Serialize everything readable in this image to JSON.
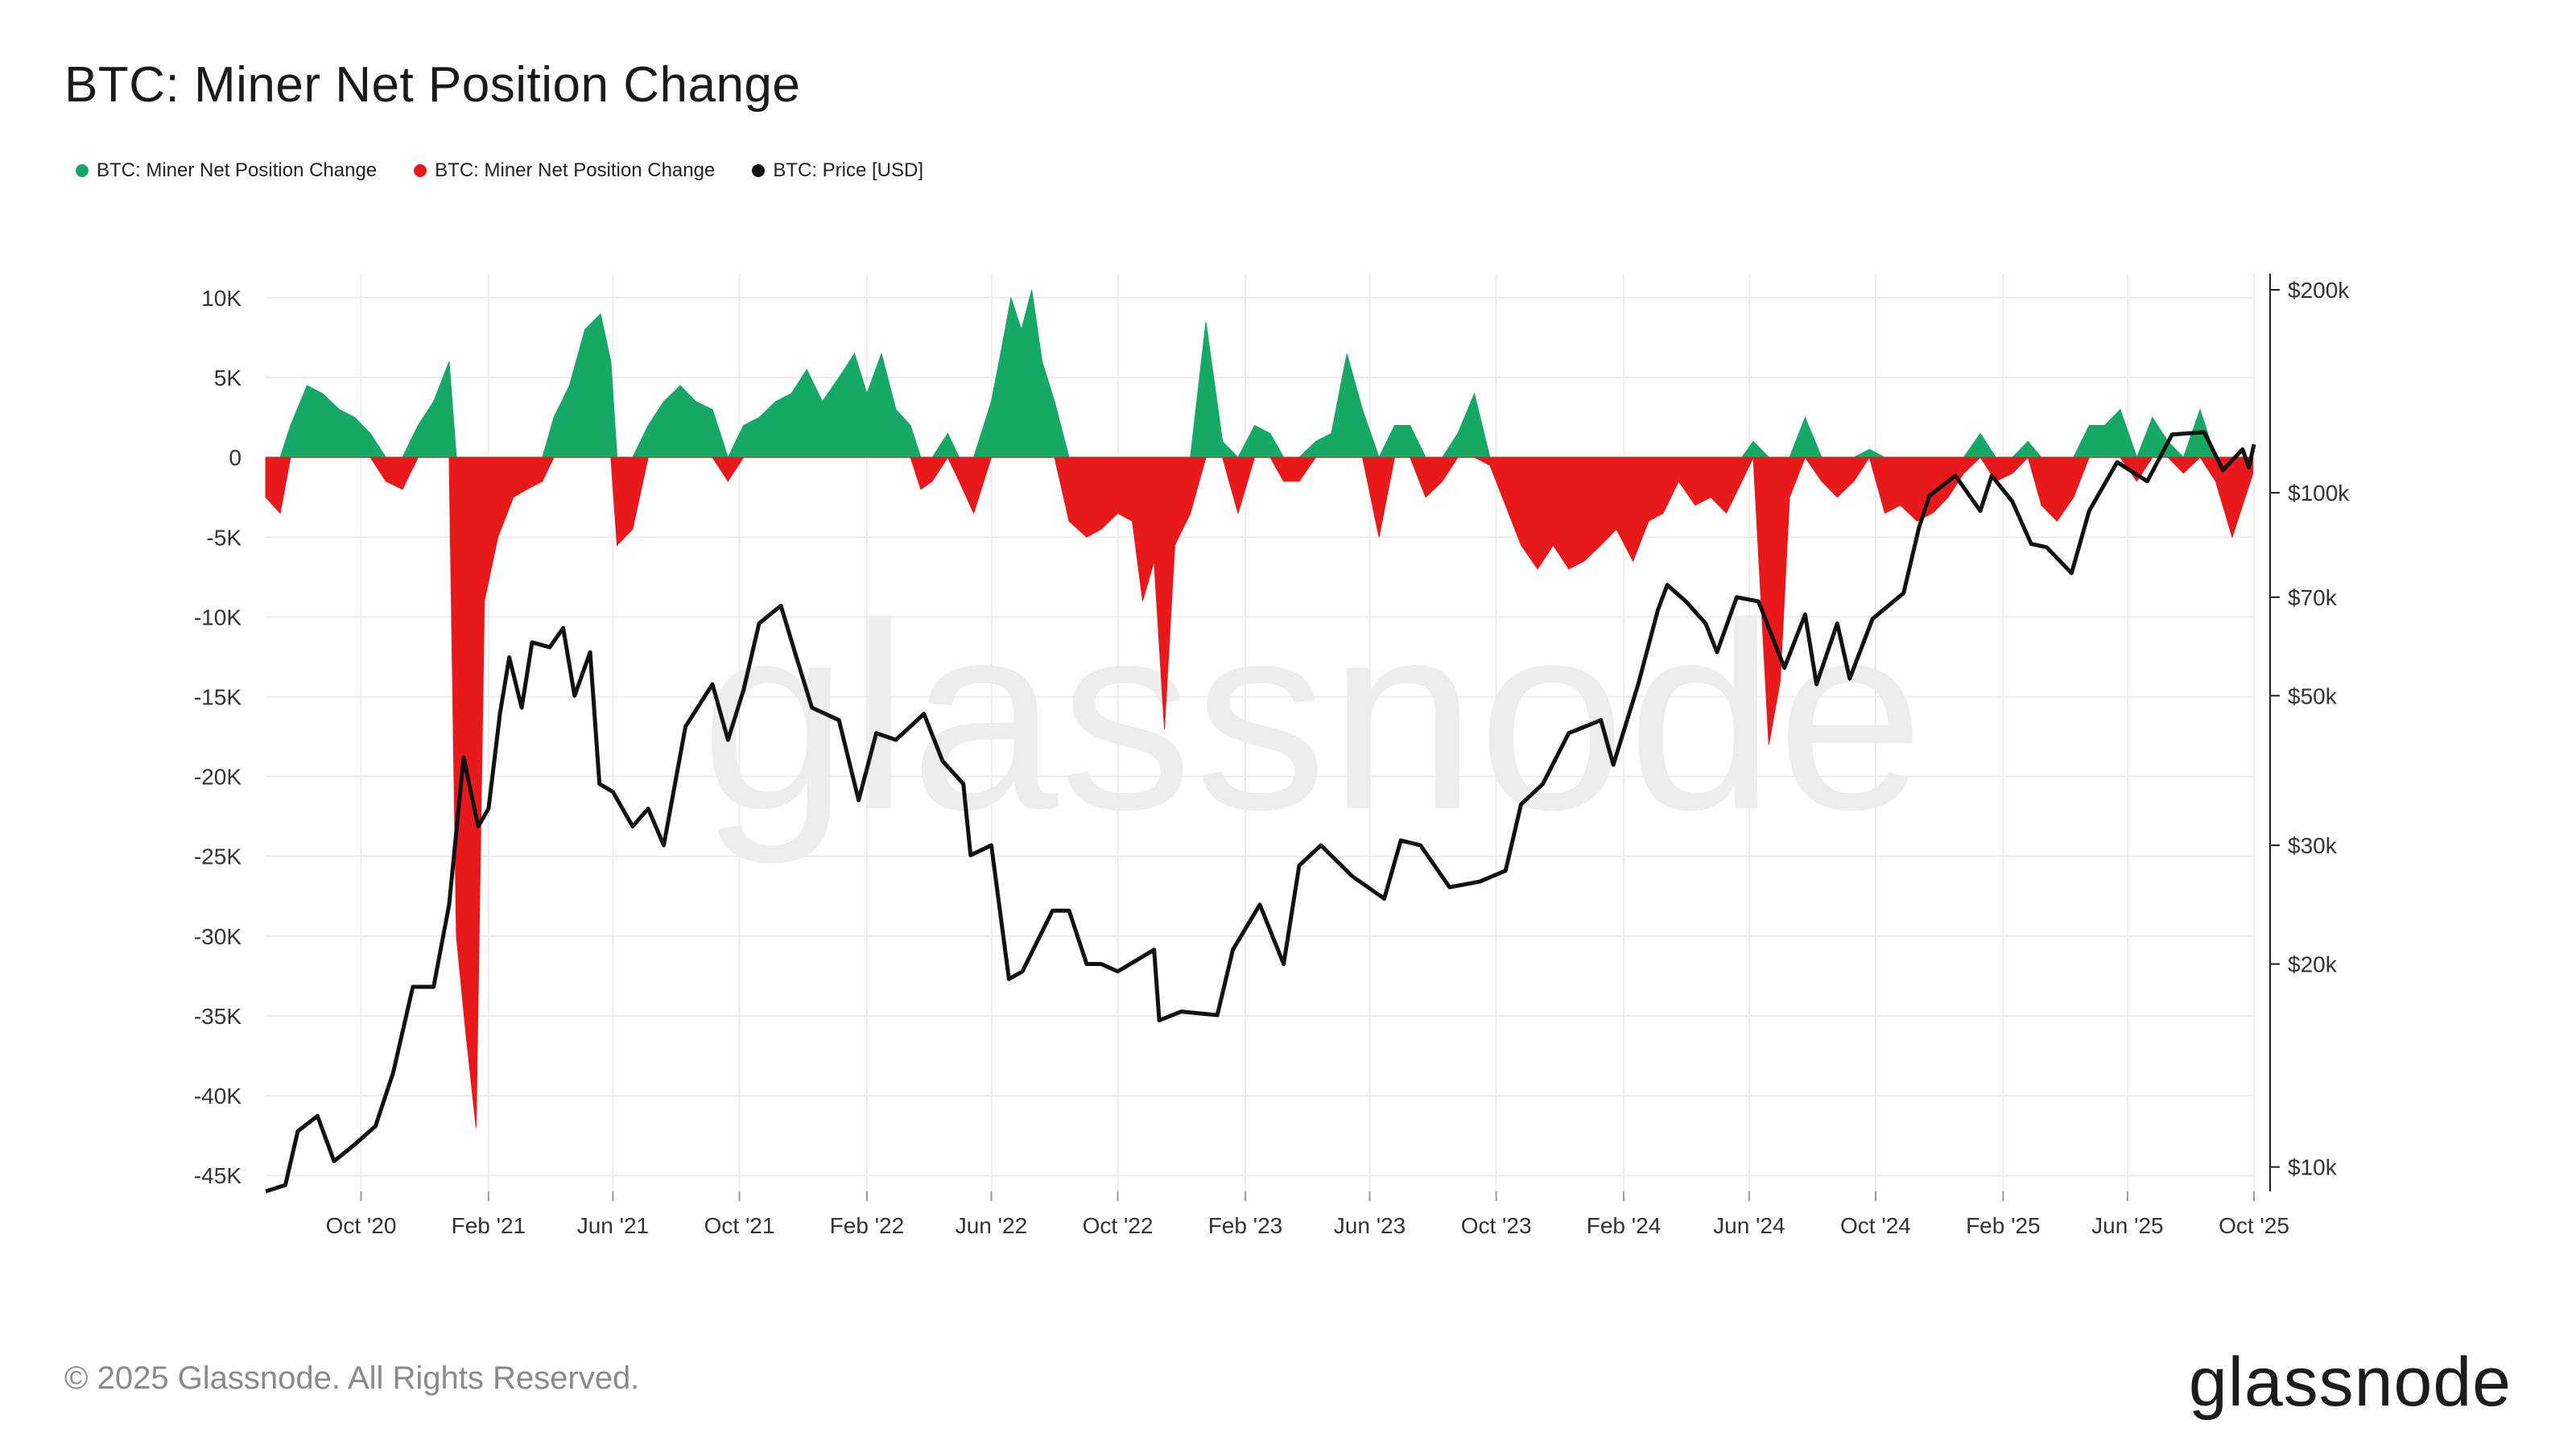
{
  "header": {
    "title": "BTC: Miner Net Position Change"
  },
  "legend": [
    {
      "label": "BTC: Miner Net Position Change",
      "color": "#16a865"
    },
    {
      "label": "BTC: Miner Net Position Change",
      "color": "#e8191b"
    },
    {
      "label": "BTC: Price [USD]",
      "color": "#111111"
    }
  ],
  "watermark": "glassnode",
  "footer": {
    "copyright": "© 2025 Glassnode. All Rights Reserved.",
    "brand": "glassnode"
  },
  "colors": {
    "positive": "#16a865",
    "negative": "#e8191b",
    "price": "#111111",
    "grid": "#ececec"
  },
  "chart_data": {
    "type": "bar+line",
    "x_ticks": [
      "Oct '20",
      "Feb '21",
      "Jun '21",
      "Oct '21",
      "Feb '22",
      "Jun '22",
      "Oct '22",
      "Feb '23",
      "Jun '23",
      "Oct '23",
      "Feb '24",
      "Jun '24",
      "Oct '24",
      "Feb '25",
      "Jun '25",
      "Oct '25"
    ],
    "x_tick_dates": [
      "2020-10-01",
      "2021-02-01",
      "2021-06-01",
      "2021-10-01",
      "2022-02-01",
      "2022-06-01",
      "2022-10-01",
      "2023-02-01",
      "2023-06-01",
      "2023-10-01",
      "2024-02-01",
      "2024-06-01",
      "2024-10-01",
      "2025-02-01",
      "2025-06-01",
      "2025-10-01"
    ],
    "x_range": [
      "2020-07-01",
      "2025-10-01"
    ],
    "y_left": {
      "ticks": [
        "10K",
        "5K",
        "0",
        "-5K",
        "-10K",
        "-15K",
        "-20K",
        "-25K",
        "-30K",
        "-35K",
        "-40K",
        "-45K"
      ],
      "tick_values": [
        10000,
        5000,
        0,
        -5000,
        -10000,
        -15000,
        -20000,
        -25000,
        -30000,
        -35000,
        -40000,
        -45000
      ],
      "range": [
        -46000,
        10500
      ]
    },
    "y_right": {
      "scale": "log",
      "ticks": [
        "$200k",
        "$100k",
        "$70k",
        "$50k",
        "$30k",
        "$20k",
        "$10k"
      ],
      "tick_values": [
        200000,
        100000,
        70000,
        50000,
        30000,
        20000,
        10000
      ],
      "range": [
        9200,
        200000
      ]
    },
    "series": [
      {
        "name": "BTC: Miner Net Position Change",
        "kind": "area",
        "points": [
          [
            "2020-07-01",
            -2500
          ],
          [
            "2020-07-15",
            -3500
          ],
          [
            "2020-07-25",
            2000
          ],
          [
            "2020-08-10",
            4500
          ],
          [
            "2020-08-25",
            4000
          ],
          [
            "2020-09-10",
            3000
          ],
          [
            "2020-09-25",
            2500
          ],
          [
            "2020-10-10",
            1500
          ],
          [
            "2020-10-25",
            -1500
          ],
          [
            "2020-11-10",
            -2000
          ],
          [
            "2020-11-25",
            2000
          ],
          [
            "2020-12-10",
            3500
          ],
          [
            "2020-12-25",
            6000
          ],
          [
            "2021-01-01",
            -30000
          ],
          [
            "2021-01-10",
            -36000
          ],
          [
            "2021-01-20",
            -42000
          ],
          [
            "2021-01-28",
            -9000
          ],
          [
            "2021-02-10",
            -5000
          ],
          [
            "2021-02-25",
            -2500
          ],
          [
            "2021-03-10",
            -2000
          ],
          [
            "2021-03-25",
            -1500
          ],
          [
            "2021-04-05",
            2500
          ],
          [
            "2021-04-20",
            4500
          ],
          [
            "2021-05-05",
            8000
          ],
          [
            "2021-05-20",
            9000
          ],
          [
            "2021-05-30",
            6000
          ],
          [
            "2021-06-05",
            -5500
          ],
          [
            "2021-06-20",
            -4500
          ],
          [
            "2021-07-05",
            2000
          ],
          [
            "2021-07-20",
            3500
          ],
          [
            "2021-08-05",
            4500
          ],
          [
            "2021-08-20",
            3500
          ],
          [
            "2021-09-05",
            3000
          ],
          [
            "2021-09-20",
            -1500
          ],
          [
            "2021-10-05",
            2000
          ],
          [
            "2021-10-20",
            2500
          ],
          [
            "2021-11-05",
            3500
          ],
          [
            "2021-11-20",
            4000
          ],
          [
            "2021-12-05",
            5500
          ],
          [
            "2021-12-20",
            3500
          ],
          [
            "2022-01-05",
            5000
          ],
          [
            "2022-01-20",
            6500
          ],
          [
            "2022-02-01",
            4000
          ],
          [
            "2022-02-15",
            6500
          ],
          [
            "2022-03-01",
            3000
          ],
          [
            "2022-03-15",
            2000
          ],
          [
            "2022-03-25",
            -2000
          ],
          [
            "2022-04-05",
            -1500
          ],
          [
            "2022-04-20",
            1500
          ],
          [
            "2022-05-01",
            -1500
          ],
          [
            "2022-05-15",
            -3500
          ],
          [
            "2022-06-01",
            3500
          ],
          [
            "2022-06-10",
            6500
          ],
          [
            "2022-06-20",
            10000
          ],
          [
            "2022-06-30",
            8000
          ],
          [
            "2022-07-10",
            10500
          ],
          [
            "2022-07-20",
            6000
          ],
          [
            "2022-08-01",
            3500
          ],
          [
            "2022-08-15",
            -4000
          ],
          [
            "2022-09-01",
            -5000
          ],
          [
            "2022-09-15",
            -4500
          ],
          [
            "2022-10-01",
            -3500
          ],
          [
            "2022-10-15",
            -4000
          ],
          [
            "2022-10-25",
            -9000
          ],
          [
            "2022-11-05",
            -6500
          ],
          [
            "2022-11-15",
            -17000
          ],
          [
            "2022-11-25",
            -5500
          ],
          [
            "2022-12-10",
            -3500
          ],
          [
            "2022-12-25",
            8500
          ],
          [
            "2023-01-10",
            1000
          ],
          [
            "2023-01-25",
            -3500
          ],
          [
            "2023-02-10",
            2000
          ],
          [
            "2023-02-25",
            1500
          ],
          [
            "2023-03-10",
            -1500
          ],
          [
            "2023-03-25",
            -1500
          ],
          [
            "2023-04-10",
            1000
          ],
          [
            "2023-04-25",
            1500
          ],
          [
            "2023-05-10",
            6500
          ],
          [
            "2023-05-25",
            3000
          ],
          [
            "2023-06-10",
            -5000
          ],
          [
            "2023-06-25",
            2000
          ],
          [
            "2023-07-10",
            2000
          ],
          [
            "2023-07-25",
            -2500
          ],
          [
            "2023-08-10",
            -1500
          ],
          [
            "2023-08-25",
            1500
          ],
          [
            "2023-09-10",
            4000
          ],
          [
            "2023-09-25",
            -500
          ],
          [
            "2023-10-10",
            -3000
          ],
          [
            "2023-10-25",
            -5500
          ],
          [
            "2023-11-10",
            -7000
          ],
          [
            "2023-11-25",
            -5500
          ],
          [
            "2023-12-10",
            -7000
          ],
          [
            "2023-12-25",
            -6500
          ],
          [
            "2024-01-10",
            -5500
          ],
          [
            "2024-01-25",
            -4500
          ],
          [
            "2024-02-10",
            -6500
          ],
          [
            "2024-02-25",
            -4000
          ],
          [
            "2024-03-10",
            -3500
          ],
          [
            "2024-03-25",
            -1500
          ],
          [
            "2024-04-10",
            -3000
          ],
          [
            "2024-04-25",
            -2500
          ],
          [
            "2024-05-10",
            -3500
          ],
          [
            "2024-05-25",
            -1500
          ],
          [
            "2024-06-05",
            1000
          ],
          [
            "2024-06-20",
            -18000
          ],
          [
            "2024-07-01",
            -14000
          ],
          [
            "2024-07-10",
            -2500
          ],
          [
            "2024-07-25",
            2500
          ],
          [
            "2024-08-10",
            -1500
          ],
          [
            "2024-08-25",
            -2500
          ],
          [
            "2024-09-10",
            -1500
          ],
          [
            "2024-09-25",
            500
          ],
          [
            "2024-10-10",
            -3500
          ],
          [
            "2024-10-25",
            -3000
          ],
          [
            "2024-11-10",
            -4000
          ],
          [
            "2024-11-25",
            -3500
          ],
          [
            "2024-12-10",
            -2500
          ],
          [
            "2024-12-25",
            -1000
          ],
          [
            "2025-01-10",
            1500
          ],
          [
            "2025-01-25",
            -1500
          ],
          [
            "2025-02-10",
            -1000
          ],
          [
            "2025-02-25",
            1000
          ],
          [
            "2025-03-10",
            -3000
          ],
          [
            "2025-03-25",
            -4000
          ],
          [
            "2025-04-10",
            -2500
          ],
          [
            "2025-04-25",
            2000
          ],
          [
            "2025-05-10",
            2000
          ],
          [
            "2025-05-25",
            3000
          ],
          [
            "2025-06-10",
            -1500
          ],
          [
            "2025-06-25",
            2500
          ],
          [
            "2025-07-10",
            1000
          ],
          [
            "2025-07-25",
            -1000
          ],
          [
            "2025-08-10",
            3000
          ],
          [
            "2025-08-25",
            -1500
          ],
          [
            "2025-09-10",
            -5000
          ],
          [
            "2025-09-20",
            -3000
          ],
          [
            "2025-09-30",
            -1000
          ]
        ]
      },
      {
        "name": "BTC: Price [USD]",
        "kind": "line",
        "points": [
          [
            "2020-07-01",
            9200
          ],
          [
            "2020-07-20",
            9400
          ],
          [
            "2020-08-01",
            11300
          ],
          [
            "2020-08-20",
            11900
          ],
          [
            "2020-09-05",
            10200
          ],
          [
            "2020-09-25",
            10800
          ],
          [
            "2020-10-15",
            11500
          ],
          [
            "2020-11-01",
            13800
          ],
          [
            "2020-11-20",
            18500
          ],
          [
            "2020-12-10",
            18500
          ],
          [
            "2020-12-25",
            24500
          ],
          [
            "2021-01-08",
            40500
          ],
          [
            "2021-01-22",
            32000
          ],
          [
            "2021-02-01",
            34000
          ],
          [
            "2021-02-12",
            47000
          ],
          [
            "2021-02-21",
            57000
          ],
          [
            "2021-03-05",
            48000
          ],
          [
            "2021-03-15",
            60000
          ],
          [
            "2021-04-01",
            59000
          ],
          [
            "2021-04-14",
            63000
          ],
          [
            "2021-04-25",
            50000
          ],
          [
            "2021-05-10",
            58000
          ],
          [
            "2021-05-19",
            37000
          ],
          [
            "2021-06-01",
            36000
          ],
          [
            "2021-06-20",
            32000
          ],
          [
            "2021-07-05",
            34000
          ],
          [
            "2021-07-20",
            30000
          ],
          [
            "2021-08-10",
            45000
          ],
          [
            "2021-09-05",
            52000
          ],
          [
            "2021-09-20",
            43000
          ],
          [
            "2021-10-05",
            51000
          ],
          [
            "2021-10-20",
            64000
          ],
          [
            "2021-11-10",
            68000
          ],
          [
            "2021-11-25",
            57000
          ],
          [
            "2021-12-10",
            48000
          ],
          [
            "2022-01-05",
            46000
          ],
          [
            "2022-01-24",
            35000
          ],
          [
            "2022-02-10",
            44000
          ],
          [
            "2022-03-01",
            43000
          ],
          [
            "2022-03-28",
            47000
          ],
          [
            "2022-04-15",
            40000
          ],
          [
            "2022-05-05",
            37000
          ],
          [
            "2022-05-12",
            29000
          ],
          [
            "2022-06-01",
            30000
          ],
          [
            "2022-06-18",
            19000
          ],
          [
            "2022-07-01",
            19500
          ],
          [
            "2022-07-30",
            24000
          ],
          [
            "2022-08-15",
            24000
          ],
          [
            "2022-09-01",
            20000
          ],
          [
            "2022-09-15",
            20000
          ],
          [
            "2022-10-01",
            19500
          ],
          [
            "2022-11-05",
            21000
          ],
          [
            "2022-11-10",
            16500
          ],
          [
            "2022-12-01",
            17000
          ],
          [
            "2023-01-05",
            16800
          ],
          [
            "2023-01-20",
            21000
          ],
          [
            "2023-02-15",
            24500
          ],
          [
            "2023-03-10",
            20000
          ],
          [
            "2023-03-25",
            28000
          ],
          [
            "2023-04-15",
            30000
          ],
          [
            "2023-05-15",
            27000
          ],
          [
            "2023-06-15",
            25000
          ],
          [
            "2023-07-01",
            30500
          ],
          [
            "2023-07-20",
            30000
          ],
          [
            "2023-08-17",
            26000
          ],
          [
            "2023-09-15",
            26500
          ],
          [
            "2023-10-10",
            27500
          ],
          [
            "2023-10-25",
            34500
          ],
          [
            "2023-11-15",
            37000
          ],
          [
            "2023-12-10",
            44000
          ],
          [
            "2024-01-10",
            46000
          ],
          [
            "2024-01-22",
            39500
          ],
          [
            "2024-02-15",
            52000
          ],
          [
            "2024-03-05",
            67000
          ],
          [
            "2024-03-14",
            73000
          ],
          [
            "2024-04-01",
            69000
          ],
          [
            "2024-04-20",
            64000
          ],
          [
            "2024-05-01",
            58000
          ],
          [
            "2024-05-20",
            70000
          ],
          [
            "2024-06-10",
            69000
          ],
          [
            "2024-07-05",
            55000
          ],
          [
            "2024-07-25",
            66000
          ],
          [
            "2024-08-05",
            52000
          ],
          [
            "2024-08-25",
            64000
          ],
          [
            "2024-09-06",
            53000
          ],
          [
            "2024-09-28",
            65000
          ],
          [
            "2024-10-28",
            71000
          ],
          [
            "2024-11-12",
            89000
          ],
          [
            "2024-11-22",
            99000
          ],
          [
            "2024-12-17",
            106000
          ],
          [
            "2025-01-10",
            94000
          ],
          [
            "2025-01-21",
            106000
          ],
          [
            "2025-02-10",
            97000
          ],
          [
            "2025-02-28",
            84000
          ],
          [
            "2025-03-15",
            83000
          ],
          [
            "2025-04-08",
            76000
          ],
          [
            "2025-04-25",
            94000
          ],
          [
            "2025-05-22",
            111000
          ],
          [
            "2025-06-20",
            104000
          ],
          [
            "2025-07-14",
            122000
          ],
          [
            "2025-08-14",
            123000
          ],
          [
            "2025-09-01",
            108000
          ],
          [
            "2025-09-20",
            116000
          ],
          [
            "2025-09-26",
            109000
          ],
          [
            "2025-10-01",
            118000
          ]
        ]
      }
    ]
  }
}
